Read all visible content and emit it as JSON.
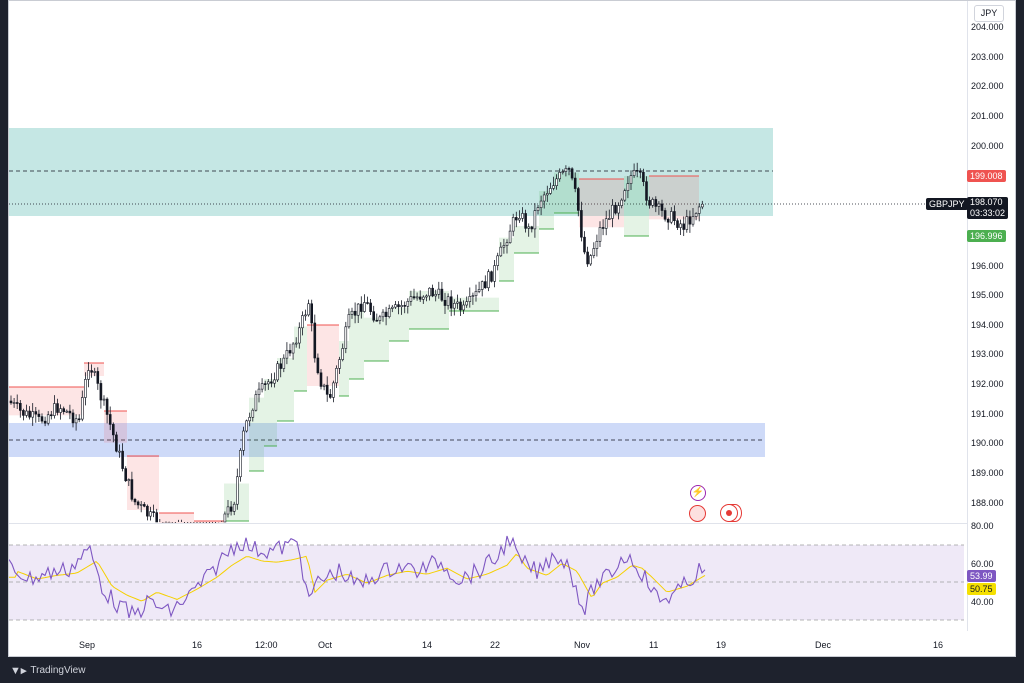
{
  "app": {
    "brand": "TradingView"
  },
  "chart": {
    "symbol": "GBPJPY",
    "currency": "JPY",
    "last_price": "198.070",
    "countdown": "03:33:02",
    "upper_stop": "199.008",
    "lower_stop": "196.996",
    "price_axis_labels": [
      "204.000",
      "203.000",
      "202.000",
      "201.000",
      "200.000",
      "196.000",
      "195.000",
      "194.000",
      "193.000",
      "192.000",
      "191.000",
      "190.000",
      "189.000",
      "188.000"
    ],
    "colors": {
      "bull_stop": "#4caf50",
      "bear_stop": "#ef5350",
      "supply_zone": "#b2dfdb",
      "demand_zone": "#c5d3f7",
      "rsi_line": "#7e57c2",
      "rsi_ma": "#f5e000"
    }
  },
  "rsi": {
    "axis_labels": [
      "80.00",
      "60.00",
      "40.00"
    ],
    "value": "53.99",
    "ma_value": "50.75"
  },
  "time_axis": {
    "labels": [
      "Sep",
      "16",
      "12:00",
      "Oct",
      "14",
      "22",
      "Nov",
      "11",
      "19",
      "Dec",
      "16"
    ]
  }
}
